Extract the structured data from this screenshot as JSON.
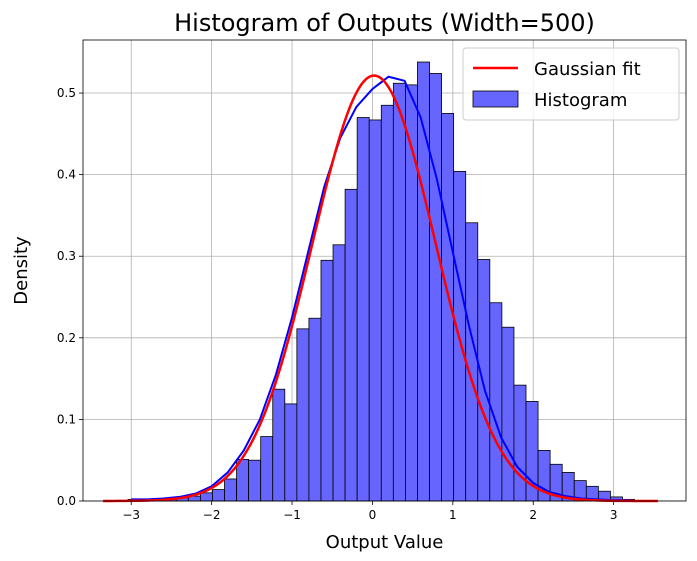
{
  "chart_data": {
    "type": "bar",
    "title": "Histogram of Outputs (Width=500)",
    "xlabel": "Output Value",
    "ylabel": "Density",
    "xlim": [
      -3.6,
      3.9
    ],
    "ylim": [
      0,
      0.565
    ],
    "xticks": [
      -3,
      -2,
      -1,
      0,
      1,
      2,
      3
    ],
    "yticks": [
      0.0,
      0.1,
      0.2,
      0.3,
      0.4,
      0.5
    ],
    "xtick_labels": [
      "−3",
      "−2",
      "−1",
      "0",
      "1",
      "2",
      "3"
    ],
    "ytick_labels": [
      "0.0",
      "0.1",
      "0.2",
      "0.3",
      "0.4",
      "0.5"
    ],
    "grid": true,
    "legend_position": "top-right",
    "bins": {
      "edges": [
        -3.04,
        -2.89,
        -2.74,
        -2.59,
        -2.44,
        -2.29,
        -2.14,
        -1.99,
        -1.84,
        -1.69,
        -1.54,
        -1.39,
        -1.24,
        -1.09,
        -0.94,
        -0.79,
        -0.64,
        -0.49,
        -0.34,
        -0.19,
        -0.04,
        0.11,
        0.26,
        0.41,
        0.56,
        0.71,
        0.86,
        1.01,
        1.16,
        1.31,
        1.46,
        1.61,
        1.76,
        1.91,
        2.06,
        2.21,
        2.36,
        2.51,
        2.66,
        2.81,
        2.96,
        3.11,
        3.26
      ],
      "densities": [
        0.002,
        0.001,
        0.002,
        0.003,
        0.004,
        0.006,
        0.01,
        0.014,
        0.027,
        0.051,
        0.05,
        0.079,
        0.137,
        0.119,
        0.211,
        0.224,
        0.295,
        0.314,
        0.382,
        0.47,
        0.467,
        0.485,
        0.512,
        0.51,
        0.538,
        0.524,
        0.475,
        0.404,
        0.341,
        0.296,
        0.243,
        0.213,
        0.142,
        0.122,
        0.062,
        0.045,
        0.035,
        0.025,
        0.018,
        0.012,
        0.005,
        0.002,
        0.001
      ]
    },
    "series": [
      {
        "name": "Histogram",
        "kind": "histogram",
        "color": "#6666ff",
        "edgecolor": "#000000"
      },
      {
        "name": "Gaussian fit",
        "kind": "gaussian",
        "color": "#ff0000",
        "mean": 0.02,
        "std": 0.765,
        "x_range": [
          -3.35,
          3.55
        ]
      },
      {
        "kind": "kde",
        "color": "#0000ff",
        "x": [
          -3.0,
          -2.8,
          -2.6,
          -2.4,
          -2.2,
          -2.0,
          -1.8,
          -1.6,
          -1.4,
          -1.2,
          -1.0,
          -0.8,
          -0.6,
          -0.4,
          -0.2,
          0.0,
          0.2,
          0.4,
          0.6,
          0.8,
          1.0,
          1.2,
          1.4,
          1.6,
          1.8,
          2.0,
          2.2,
          2.4,
          2.6,
          2.8,
          3.0,
          3.2
        ],
        "y": [
          0.002,
          0.002,
          0.003,
          0.005,
          0.009,
          0.018,
          0.035,
          0.062,
          0.1,
          0.155,
          0.225,
          0.305,
          0.385,
          0.445,
          0.483,
          0.505,
          0.52,
          0.515,
          0.47,
          0.395,
          0.305,
          0.215,
          0.135,
          0.078,
          0.042,
          0.022,
          0.011,
          0.006,
          0.003,
          0.002,
          0.001,
          0.001
        ]
      }
    ]
  }
}
